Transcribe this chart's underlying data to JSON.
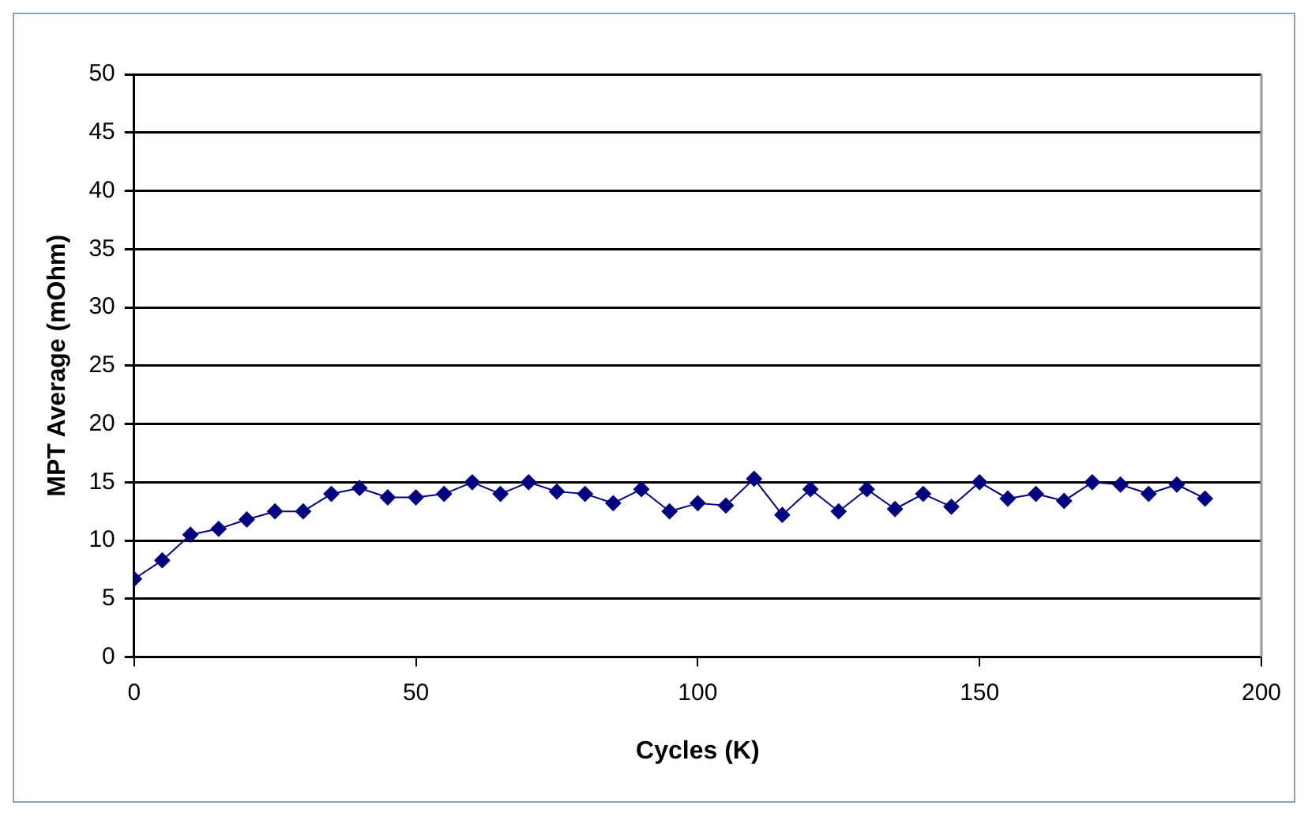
{
  "chart_data": {
    "type": "line",
    "xlabel": "Cycles (K)",
    "ylabel": "MPT Average (mOhm)",
    "x": [
      0,
      5,
      10,
      15,
      20,
      25,
      30,
      35,
      40,
      45,
      50,
      55,
      60,
      65,
      70,
      75,
      80,
      85,
      90,
      95,
      100,
      105,
      110,
      115,
      120,
      125,
      130,
      135,
      140,
      145,
      150,
      155,
      160,
      165,
      170,
      175,
      180,
      185,
      190
    ],
    "series": [
      {
        "color": "#000080",
        "values": [
          6.7,
          8.3,
          10.5,
          11,
          11.8,
          12.5,
          12.5,
          14,
          14.5,
          13.7,
          13.7,
          14,
          15,
          14,
          15,
          14.2,
          14,
          13.2,
          14.4,
          12.5,
          13.2,
          13,
          15.3,
          12.2,
          14.4,
          12.5,
          14.4,
          12.7,
          14,
          12.9,
          15,
          13.6,
          14,
          13.4,
          15,
          14.8,
          14,
          14.8,
          13.6
        ]
      }
    ],
    "xlim": [
      0,
      200
    ],
    "xticks": [
      0,
      50,
      100,
      150,
      200
    ],
    "ylim": [
      0,
      50
    ],
    "yticks": [
      0,
      5,
      10,
      15,
      20,
      25,
      30,
      35,
      40,
      45,
      50
    ],
    "grid": "y",
    "legend": false,
    "marker": "diamond",
    "line_style": "solid"
  }
}
